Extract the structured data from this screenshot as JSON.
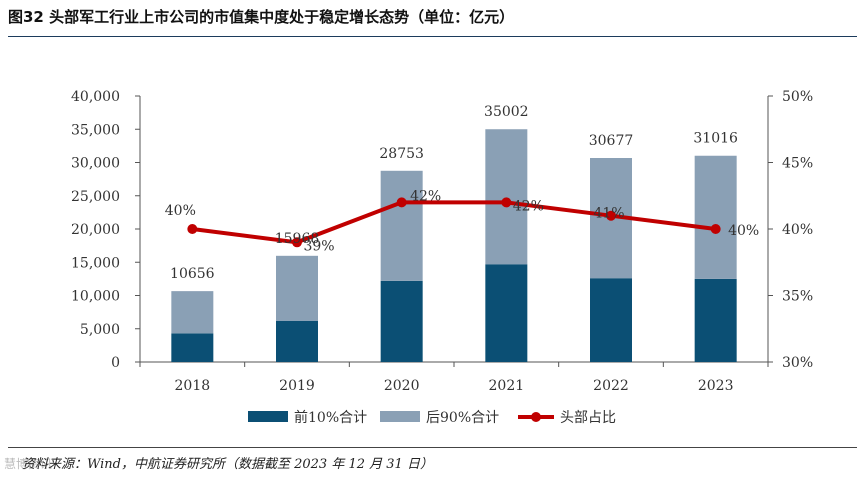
{
  "header": {
    "title": "图32 头部军工行业上市公司的市值集中度处于稳定增长态势（单位：亿元）"
  },
  "footer": {
    "source": "资料来源：Wind，中航证券研究所（数据截至 2023 年 12 月 31 日）",
    "watermark": "慧博资讯"
  },
  "chart_data": {
    "type": "bar",
    "stacked": true,
    "title": "图32 头部军工行业上市公司的市值集中度处于稳定增长态势（单位：亿元）",
    "categories": [
      "2018",
      "2019",
      "2020",
      "2021",
      "2022",
      "2023"
    ],
    "series": [
      {
        "name": "前10%合计",
        "type": "bar",
        "axis": "left",
        "color": "#0b4f74",
        "values": [
          4300,
          6200,
          12200,
          14700,
          12600,
          12500
        ]
      },
      {
        "name": "后90%合计",
        "type": "bar",
        "axis": "left",
        "color": "#8aa0b5",
        "values": [
          6356,
          9768,
          16553,
          20302,
          18077,
          18516
        ]
      },
      {
        "name": "头部占比",
        "type": "line",
        "axis": "right",
        "color": "#c00000",
        "values": [
          40,
          39,
          42,
          42,
          41,
          40
        ]
      }
    ],
    "totals": [
      "10656",
      "15968",
      "28753",
      "35002",
      "30677",
      "31016"
    ],
    "line_labels": [
      "40%",
      "39%",
      "42%",
      "42%",
      "41%",
      "40%"
    ],
    "yleft": {
      "min": 0,
      "max": 40000,
      "step": 5000,
      "ticks": [
        "0",
        "5,000",
        "10,000",
        "15,000",
        "20,000",
        "25,000",
        "30,000",
        "35,000",
        "40,000"
      ]
    },
    "yright": {
      "min": 30,
      "max": 50,
      "step": 5,
      "ticks": [
        "30%",
        "35%",
        "40%",
        "45%",
        "50%"
      ]
    },
    "legend": {
      "position": "bottom",
      "items": [
        "前10%合计",
        "后90%合计",
        "头部占比"
      ]
    },
    "grid": false
  }
}
